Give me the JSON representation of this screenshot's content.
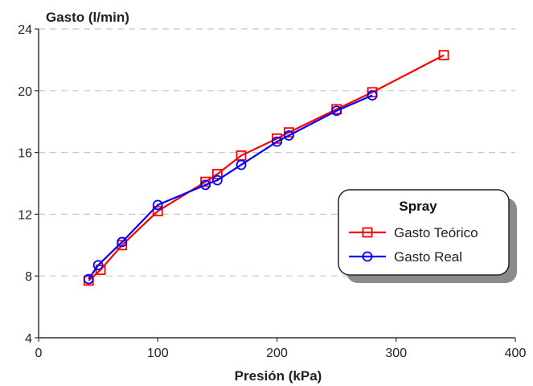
{
  "chart_data": {
    "type": "line",
    "ylabel": "Gasto (l/min)",
    "xlabel": "Presión (kPa)",
    "xlim": [
      0,
      400
    ],
    "ylim": [
      4,
      24
    ],
    "x_ticks": [
      0,
      100,
      200,
      300,
      400
    ],
    "y_ticks": [
      4,
      8,
      12,
      16,
      20,
      24
    ],
    "grid": "horizontal dashed",
    "legend_title": "Spray",
    "legend_position": "right",
    "series": [
      {
        "name": "Gasto Teórico",
        "color": "#ff0000",
        "marker": "square",
        "points": [
          [
            42,
            7.7
          ],
          [
            52,
            8.4
          ],
          [
            70,
            10.0
          ],
          [
            100,
            12.2
          ],
          [
            140,
            14.1
          ],
          [
            150,
            14.6
          ],
          [
            170,
            15.8
          ],
          [
            200,
            16.9
          ],
          [
            210,
            17.3
          ],
          [
            250,
            18.8
          ],
          [
            280,
            19.9
          ],
          [
            340,
            22.3
          ]
        ]
      },
      {
        "name": "Gasto Real",
        "color": "#0000ff",
        "marker": "circle",
        "points": [
          [
            42,
            7.8
          ],
          [
            50,
            8.7
          ],
          [
            70,
            10.2
          ],
          [
            100,
            12.6
          ],
          [
            140,
            13.9
          ],
          [
            150,
            14.2
          ],
          [
            170,
            15.2
          ],
          [
            200,
            16.7
          ],
          [
            210,
            17.1
          ],
          [
            250,
            18.7
          ],
          [
            280,
            19.7
          ]
        ]
      }
    ]
  }
}
